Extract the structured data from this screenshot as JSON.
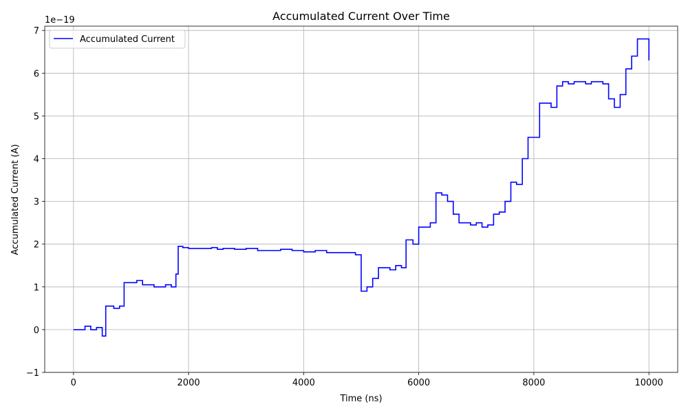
{
  "chart_data": {
    "type": "line",
    "title": "Accumulated Current Over Time",
    "xlabel": "Time (ns)",
    "ylabel": "Accumulated Current (A)",
    "y_offset_text": "1e−19",
    "y_scale": 1e-19,
    "xlim": [
      -500,
      10500
    ],
    "ylim": [
      -1e-19,
      7.1e-19
    ],
    "x_ticks": [
      0,
      2000,
      4000,
      6000,
      8000,
      10000
    ],
    "x_tick_labels": [
      "0",
      "2000",
      "4000",
      "6000",
      "8000",
      "10000"
    ],
    "y_ticks": [
      -1e-19,
      0,
      1e-19,
      2e-19,
      3e-19,
      4e-19,
      5e-19,
      6e-19,
      7e-19
    ],
    "y_tick_labels": [
      "−1",
      "0",
      "1",
      "2",
      "3",
      "4",
      "5",
      "6",
      "7"
    ],
    "grid": true,
    "legend_position": "top-left",
    "series": [
      {
        "name": "Accumulated Current",
        "color": "#0000ff",
        "x": [
          0,
          200,
          300,
          400,
          500,
          560,
          700,
          800,
          880,
          1000,
          1100,
          1200,
          1300,
          1400,
          1500,
          1600,
          1700,
          1780,
          1820,
          1900,
          2000,
          2200,
          2400,
          2500,
          2600,
          2800,
          3000,
          3200,
          3400,
          3600,
          3800,
          4000,
          4200,
          4400,
          4600,
          4800,
          4900,
          5000,
          5100,
          5200,
          5300,
          5400,
          5500,
          5600,
          5700,
          5780,
          5900,
          6000,
          6100,
          6200,
          6300,
          6400,
          6500,
          6600,
          6700,
          6800,
          6900,
          7000,
          7100,
          7200,
          7300,
          7400,
          7500,
          7600,
          7700,
          7800,
          7900,
          8000,
          8100,
          8200,
          8300,
          8400,
          8500,
          8600,
          8700,
          8800,
          8900,
          9000,
          9100,
          9200,
          9300,
          9400,
          9500,
          9600,
          9700,
          9800,
          9900,
          10000
        ],
        "y": [
          0.0,
          8e-21,
          0.0,
          5e-21,
          -1.5e-20,
          5.5e-20,
          5e-20,
          5.5e-20,
          1.1e-19,
          1.1e-19,
          1.15e-19,
          1.05e-19,
          1.05e-19,
          1e-19,
          1e-19,
          1.05e-19,
          1e-19,
          1.3e-19,
          1.95e-19,
          1.92e-19,
          1.9e-19,
          1.9e-19,
          1.92e-19,
          1.88e-19,
          1.9e-19,
          1.88e-19,
          1.9e-19,
          1.85e-19,
          1.85e-19,
          1.88e-19,
          1.85e-19,
          1.82e-19,
          1.85e-19,
          1.8e-19,
          1.8e-19,
          1.8e-19,
          1.75e-19,
          9e-20,
          1e-19,
          1.2e-19,
          1.45e-19,
          1.45e-19,
          1.4e-19,
          1.5e-19,
          1.45e-19,
          2.1e-19,
          2e-19,
          2.4e-19,
          2.4e-19,
          2.5e-19,
          3.2e-19,
          3.15e-19,
          3e-19,
          2.7e-19,
          2.5e-19,
          2.5e-19,
          2.45e-19,
          2.5e-19,
          2.4e-19,
          2.45e-19,
          2.7e-19,
          2.75e-19,
          3e-19,
          3.45e-19,
          3.4e-19,
          4e-19,
          4.5e-19,
          4.5e-19,
          5.3e-19,
          5.3e-19,
          5.2e-19,
          5.7e-19,
          5.8e-19,
          5.75e-19,
          5.8e-19,
          5.8e-19,
          5.75e-19,
          5.8e-19,
          5.8e-19,
          5.75e-19,
          5.4e-19,
          5.2e-19,
          5.5e-19,
          6.1e-19,
          6.4e-19,
          6.8e-19,
          6.8e-19,
          6.3e-19
        ]
      }
    ]
  }
}
